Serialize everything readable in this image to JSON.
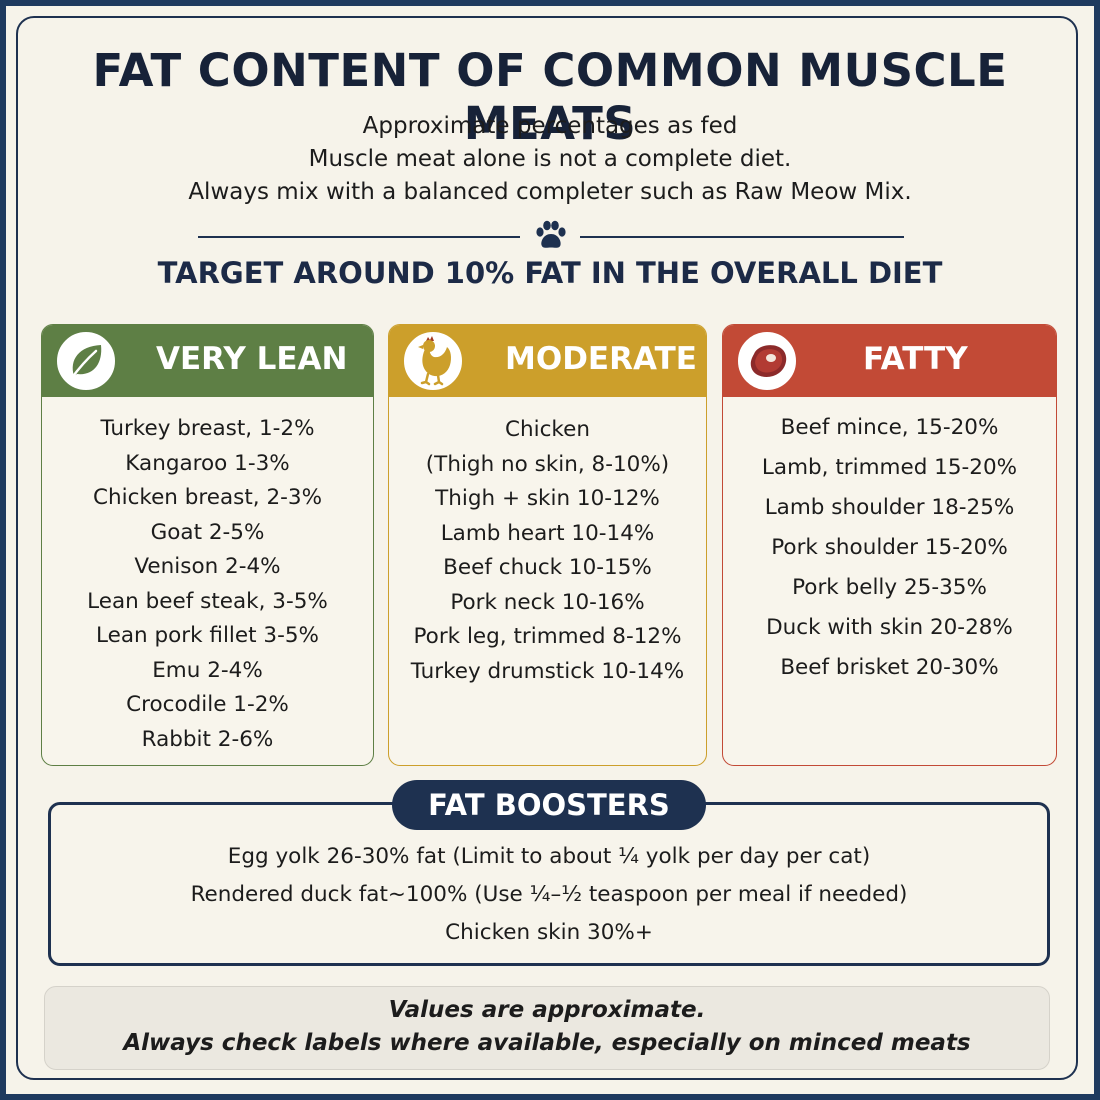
{
  "title": "FAT CONTENT OF COMMON MUSCLE MEATS",
  "subtitle_lines": [
    "Approximate percentages as fed",
    "Muscle meat alone is not a complete diet.",
    "Always mix with a balanced completer such as Raw Meow Mix."
  ],
  "divider_icon": "paw-icon",
  "target": "TARGET AROUND 10% FAT IN THE OVERALL DIET",
  "categories": [
    {
      "title": "VERY LEAN",
      "icon": "leaf-icon",
      "color": "#5e7f45",
      "items": [
        "Turkey breast, 1-2%",
        "Kangaroo 1-3%",
        "Chicken breast,  2-3%",
        "Goat 2-5%",
        "Venison 2-4%",
        "Lean beef steak,  3-5%",
        "Lean pork fillet 3-5%",
        "Emu 2-4%",
        "Crocodile 1-2%",
        "Rabbit 2-6%"
      ]
    },
    {
      "title": "MODERATE",
      "icon": "chicken-icon",
      "color": "#cc9f2b",
      "items": [
        "Chicken",
        "(Thigh no skin, 8-10%)",
        "Thigh + skin 10-12%",
        "Lamb heart 10-14%",
        "Beef chuck 10-15%",
        "Pork neck 10-16%",
        "Pork leg, trimmed 8-12%",
        "Turkey drumstick 10-14%"
      ]
    },
    {
      "title": "FATTY",
      "icon": "steak-icon",
      "color": "#c24a36",
      "items": [
        "Beef mince, 15-20%",
        "Lamb, trimmed 15-20%",
        "Lamb shoulder 18-25%",
        "Pork shoulder 15-20%",
        "Pork belly 25-35%",
        "Duck with skin 20-28%",
        "Beef brisket 20-30%"
      ]
    }
  ],
  "boosters": {
    "title": "FAT BOOSTERS",
    "lines": [
      "Egg yolk 26-30% fat  (Limit to about ¼ yolk per day per cat)",
      "Rendered duck  fat~100%  (Use ¼–½ teaspoon per meal if needed)",
      "Chicken skin 30%+"
    ]
  },
  "note": {
    "lines": [
      "Values are approximate.",
      "Always check labels where available, especially on minced meats"
    ]
  },
  "colors": {
    "navy": "#1e3150",
    "background": "#f6f3ea",
    "lean": "#5e7f45",
    "moderate": "#cc9f2b",
    "fatty": "#c24a36"
  }
}
